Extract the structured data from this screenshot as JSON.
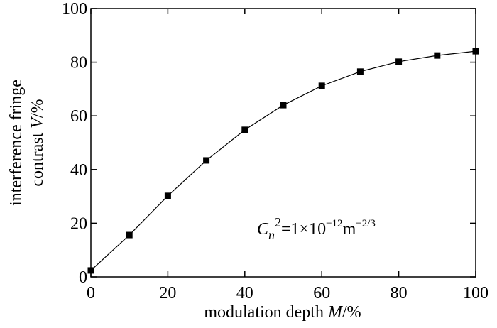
{
  "chart_data": {
    "type": "line",
    "x_label": [
      "modulation depth ",
      "M",
      "/%"
    ],
    "y_label": [
      [
        "interference fringe"
      ],
      [
        "contrast ",
        "V",
        "/%"
      ]
    ],
    "annotation": [
      "C",
      "n",
      "2",
      "=1×10",
      "−12",
      "m",
      "−2/3"
    ],
    "x": [
      0,
      10,
      20,
      30,
      40,
      50,
      60,
      70,
      80,
      90,
      100
    ],
    "series": [
      {
        "color": "#000000",
        "values": [
          2.4,
          15.6,
          30.2,
          43.4,
          54.8,
          64.0,
          71.2,
          76.5,
          80.2,
          82.5,
          84.1
        ]
      }
    ],
    "xlim": [
      0,
      100
    ],
    "xticks": [
      0,
      20,
      40,
      60,
      80,
      100
    ],
    "ylim": [
      0,
      100
    ],
    "yticks": [
      0,
      20,
      40,
      60,
      80,
      100
    ]
  }
}
